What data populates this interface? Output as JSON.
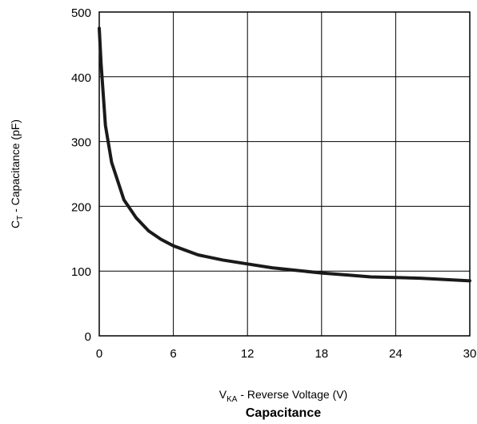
{
  "chart_data": {
    "type": "line",
    "title": "Capacitance",
    "xlabel": {
      "main": "V",
      "sub": "KA",
      "rest": " - Reverse Voltage (V)"
    },
    "ylabel": {
      "main": "C",
      "sub": "T",
      "rest": " - Capacitance (pF)"
    },
    "xlim": [
      0,
      30
    ],
    "ylim": [
      0,
      500
    ],
    "xticks": [
      "0",
      "6",
      "12",
      "18",
      "24",
      "30"
    ],
    "yticks": [
      "0",
      "100",
      "200",
      "300",
      "400",
      "500"
    ],
    "grid": true,
    "series": [
      {
        "color": "#1a1a1a",
        "x": [
          0,
          0.15,
          0.5,
          1,
          2,
          3,
          4,
          5,
          6,
          8,
          10,
          12,
          14,
          16,
          18,
          20,
          22,
          24,
          26,
          28,
          30
        ],
        "y": [
          475,
          420,
          325,
          268,
          210,
          182,
          162,
          149,
          139,
          125,
          117,
          111,
          105,
          101,
          97,
          94,
          91,
          90,
          89,
          87,
          85
        ]
      }
    ]
  }
}
